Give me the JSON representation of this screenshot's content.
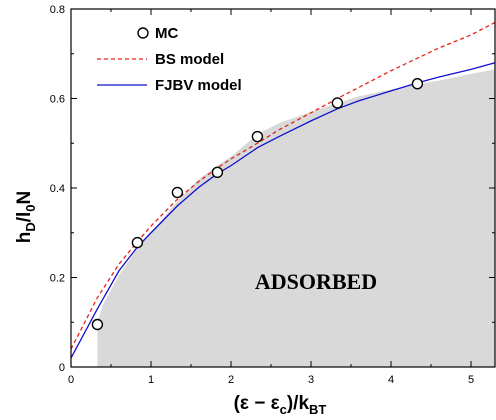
{
  "chart_data": {
    "type": "line",
    "title": "",
    "xlabel": {
      "main": "(ε − ε",
      "sub1": "c",
      "mid": ")/k",
      "sub2": "BT"
    },
    "ylabel": {
      "p1": "h",
      "s1": "D",
      "p2": "/l",
      "s2": "0",
      "p3": "N"
    },
    "xlim": [
      0,
      5.3
    ],
    "ylim": [
      0,
      0.8
    ],
    "x_ticks": [
      0,
      1,
      2,
      3,
      4,
      5
    ],
    "x_tick_labels": [
      "0",
      "1",
      "2",
      "3",
      "4",
      "5"
    ],
    "y_ticks": [
      0,
      0.2,
      0.4,
      0.6,
      0.8
    ],
    "y_tick_labels": [
      "0",
      "0.2",
      "0.4",
      "0.6",
      "0.8"
    ],
    "grid": false,
    "legend_position": "top-left",
    "region_label": "ADSORBED",
    "region_color": "#d9d9d9",
    "series": [
      {
        "name": "MC",
        "style": "marker",
        "color": "#000000",
        "x": [
          0.33,
          0.83,
          1.33,
          1.83,
          2.33,
          3.33,
          4.33
        ],
        "y": [
          0.095,
          0.278,
          0.39,
          0.435,
          0.515,
          0.59,
          0.633
        ]
      },
      {
        "name": "BS model",
        "style": "dashed",
        "color": "#e8211e",
        "x": [
          0,
          0.33,
          0.6,
          0.83,
          1.0,
          1.33,
          1.6,
          1.83,
          2.0,
          2.33,
          2.6,
          3.0,
          3.33,
          3.6,
          4.0,
          4.33,
          4.6,
          5.0,
          5.3
        ],
        "y": [
          0.04,
          0.155,
          0.23,
          0.28,
          0.315,
          0.375,
          0.415,
          0.445,
          0.465,
          0.5,
          0.53,
          0.568,
          0.6,
          0.625,
          0.662,
          0.69,
          0.713,
          0.742,
          0.77
        ]
      },
      {
        "name": "FJBV model",
        "style": "solid",
        "color": "#1111cc",
        "x": [
          0,
          0.33,
          0.6,
          0.83,
          1.0,
          1.33,
          1.6,
          1.83,
          2.0,
          2.33,
          2.6,
          3.0,
          3.33,
          3.6,
          4.0,
          4.33,
          4.6,
          5.0,
          5.3
        ],
        "y": [
          0.02,
          0.13,
          0.215,
          0.268,
          0.3,
          0.36,
          0.402,
          0.432,
          0.45,
          0.49,
          0.515,
          0.55,
          0.577,
          0.595,
          0.617,
          0.635,
          0.648,
          0.665,
          0.68
        ]
      },
      {
        "name": "",
        "style": "area",
        "color": "#d9d9d9",
        "x": [
          0.33,
          0.4,
          0.6,
          0.83,
          1.0,
          1.33,
          1.6,
          1.83,
          2.0,
          2.33,
          2.6,
          3.0,
          3.33,
          3.6,
          4.0,
          4.33,
          4.6,
          5.0,
          5.3
        ],
        "y": [
          0.1,
          0.14,
          0.205,
          0.265,
          0.3,
          0.37,
          0.42,
          0.45,
          0.47,
          0.52,
          0.545,
          0.57,
          0.59,
          0.605,
          0.62,
          0.632,
          0.64,
          0.655,
          0.665
        ]
      }
    ]
  }
}
